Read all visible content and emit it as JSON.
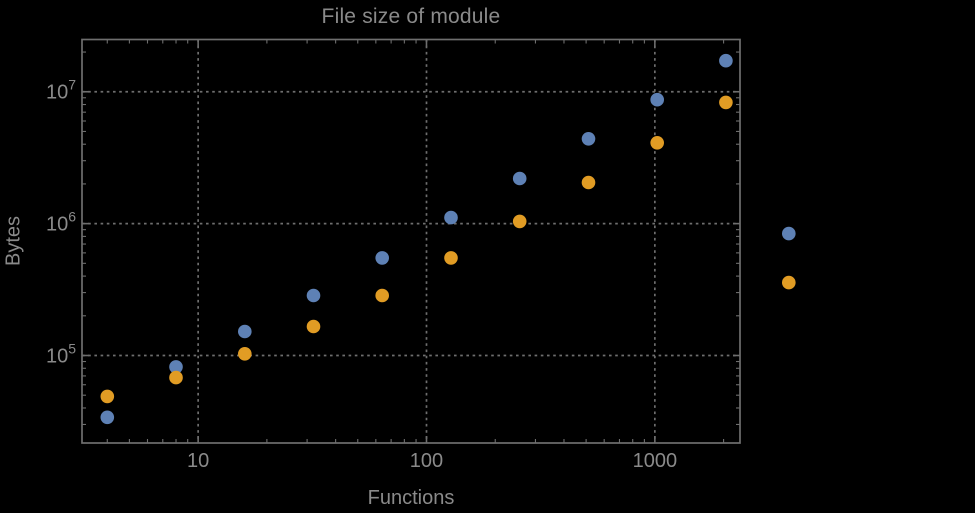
{
  "chart_data": {
    "type": "scatter",
    "title": "File size of module",
    "xlabel": "Functions",
    "ylabel": "Bytes",
    "x_scale": "log",
    "y_scale": "log",
    "xlim": [
      3.1,
      2360
    ],
    "ylim": [
      21700,
      24900000
    ],
    "grid": "dotted lines at major decade ticks, both axes",
    "legend": "none",
    "x_major_ticks": [
      10,
      100,
      1000
    ],
    "x_major_tick_labels": [
      "10",
      "100",
      "1000"
    ],
    "y_major_ticks": [
      100000,
      1000000,
      10000000
    ],
    "y_major_tick_labels": [
      {
        "base": "10",
        "exp": "5"
      },
      {
        "base": "10",
        "exp": "6"
      },
      {
        "base": "10",
        "exp": "7"
      }
    ],
    "x_minor_ticks": [
      4,
      5,
      6,
      7,
      8,
      9,
      20,
      30,
      40,
      50,
      60,
      70,
      80,
      90,
      200,
      300,
      400,
      500,
      600,
      700,
      800,
      900,
      2000
    ],
    "y_minor_ticks": [
      30000,
      40000,
      50000,
      60000,
      70000,
      80000,
      90000,
      200000,
      300000,
      400000,
      500000,
      600000,
      700000,
      800000,
      900000,
      2000000,
      3000000,
      4000000,
      5000000,
      6000000,
      7000000,
      8000000,
      9000000,
      20000000
    ],
    "series": [
      {
        "name": "blue",
        "color": "#5E81B5",
        "points": [
          [
            4,
            34000
          ],
          [
            8,
            82000
          ],
          [
            16,
            152000
          ],
          [
            32,
            285000
          ],
          [
            64,
            550000
          ],
          [
            128,
            1110000
          ],
          [
            256,
            2200000
          ],
          [
            512,
            4400000
          ],
          [
            1024,
            8700000
          ],
          [
            2048,
            17200000
          ],
          [
            3860,
            840000
          ]
        ]
      },
      {
        "name": "orange",
        "color": "#E19C24",
        "points": [
          [
            4,
            49000
          ],
          [
            8,
            68000
          ],
          [
            16,
            103000
          ],
          [
            32,
            166000
          ],
          [
            64,
            285000
          ],
          [
            128,
            550000
          ],
          [
            256,
            1040000
          ],
          [
            512,
            2050000
          ],
          [
            1024,
            4100000
          ],
          [
            2048,
            8300000
          ],
          [
            3860,
            357000
          ]
        ]
      }
    ]
  },
  "colors": {
    "background": "#000000",
    "frame": "#6e6e6e",
    "grid": "#6e6e6e",
    "text": "#8a8a8a",
    "series_blue": "#5E81B5",
    "series_orange": "#E19C24"
  }
}
